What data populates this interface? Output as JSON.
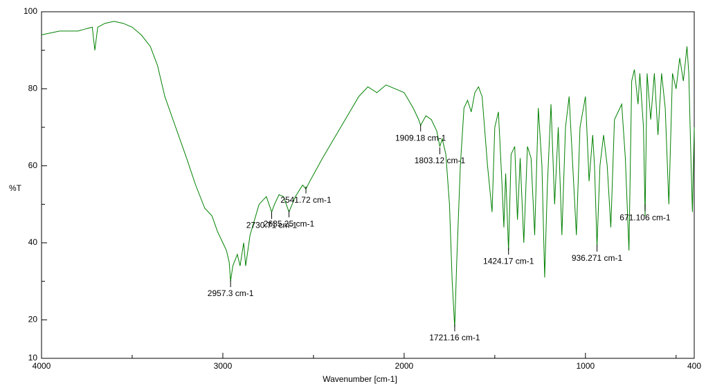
{
  "chart_data": {
    "type": "line",
    "xlabel": "Wavenumber [cm-1]",
    "ylabel": "%T",
    "color": "#008000",
    "xlim": [
      4000,
      400
    ],
    "ylim": [
      10,
      100
    ],
    "xticks": [
      4000,
      3000,
      2000,
      1000,
      400
    ],
    "xminorticks": [
      3500,
      2500,
      1500,
      500
    ],
    "yticks": [
      10,
      20,
      40,
      60,
      80,
      100
    ],
    "yminorticks": [
      30,
      50,
      70,
      90
    ],
    "x": [
      4000,
      3950,
      3900,
      3850,
      3800,
      3760,
      3720,
      3706,
      3690,
      3650,
      3600,
      3550,
      3500,
      3450,
      3400,
      3360,
      3320,
      3260,
      3200,
      3150,
      3100,
      3060,
      3030,
      3000,
      2980,
      2965,
      2957.3,
      2945,
      2920,
      2905,
      2885,
      2874,
      2850,
      2800,
      2760,
      2730.71,
      2715,
      2690,
      2665,
      2635.25,
      2600,
      2560,
      2541.72,
      2520,
      2450,
      2400,
      2350,
      2300,
      2250,
      2200,
      2150,
      2100,
      2050,
      2000,
      1950,
      1920,
      1909.18,
      1880,
      1850,
      1820,
      1803.12,
      1790,
      1770,
      1750,
      1735,
      1721.16,
      1710,
      1690,
      1670,
      1650,
      1630,
      1610,
      1590,
      1570,
      1540,
      1515,
      1500,
      1480,
      1460,
      1450,
      1440,
      1424.17,
      1410,
      1390,
      1375,
      1360,
      1340,
      1320,
      1300,
      1280,
      1260,
      1240,
      1225,
      1210,
      1190,
      1170,
      1150,
      1130,
      1110,
      1090,
      1070,
      1050,
      1030,
      1000,
      980,
      960,
      950,
      936.271,
      920,
      900,
      880,
      860,
      840,
      820,
      800,
      780,
      760,
      745,
      730,
      710,
      700,
      680,
      671.106,
      660,
      640,
      620,
      600,
      580,
      560,
      540,
      520,
      500,
      480,
      460,
      440,
      430,
      420,
      410,
      400
    ],
    "values": [
      94,
      94.5,
      95,
      95,
      95,
      95.5,
      96,
      90,
      96,
      97,
      97.5,
      97,
      96,
      94,
      91,
      86,
      78,
      70,
      62,
      55,
      49,
      47,
      43,
      40,
      38,
      35,
      30,
      34,
      37,
      34,
      40,
      34,
      42,
      50,
      52,
      48,
      50,
      52.5,
      52,
      48,
      52,
      55,
      54,
      56,
      62,
      66,
      70,
      74,
      78,
      80.5,
      79,
      81,
      80,
      79,
      75,
      72,
      70.5,
      73,
      72,
      69,
      65,
      67,
      63,
      50,
      30,
      18,
      35,
      60,
      75,
      77,
      74,
      79,
      80.5,
      78,
      60,
      48,
      70,
      74,
      55,
      44,
      58,
      38,
      63,
      65,
      46,
      62,
      40,
      65,
      62,
      42,
      75,
      60,
      31,
      55,
      76,
      50,
      70,
      42,
      70,
      78,
      60,
      42,
      70,
      78,
      56,
      68,
      60,
      39,
      60,
      68,
      60,
      44,
      72,
      74,
      76,
      62,
      38,
      82,
      85,
      76,
      84,
      70,
      47,
      84,
      72,
      84,
      68,
      84,
      75,
      50,
      84,
      80,
      88,
      82,
      91,
      84,
      65,
      48,
      70
    ],
    "annotations": [
      {
        "text": "2957.3 cm-1",
        "x": 2957.3,
        "y": 30.3
      },
      {
        "text": "2730.71 cm-1",
        "x": 2730.71,
        "y": 48
      },
      {
        "text": "2635.25 cm-1",
        "x": 2635.25,
        "y": 48.4
      },
      {
        "text": "2541.72 cm-1",
        "x": 2541.72,
        "y": 54.6
      },
      {
        "text": "1909.18 cm-1",
        "x": 1909.18,
        "y": 70.7
      },
      {
        "text": "1803.12 cm-1",
        "x": 1803.12,
        "y": 64.8
      },
      {
        "text": "1721.16 cm-1",
        "x": 1721.16,
        "y": 18.8
      },
      {
        "text": "1424.17 cm-1",
        "x": 1424.17,
        "y": 38.7
      },
      {
        "text": "936.271 cm-1",
        "x": 936.271,
        "y": 39.5
      },
      {
        "text": "671.106 cm-1",
        "x": 671.106,
        "y": 50
      }
    ]
  }
}
